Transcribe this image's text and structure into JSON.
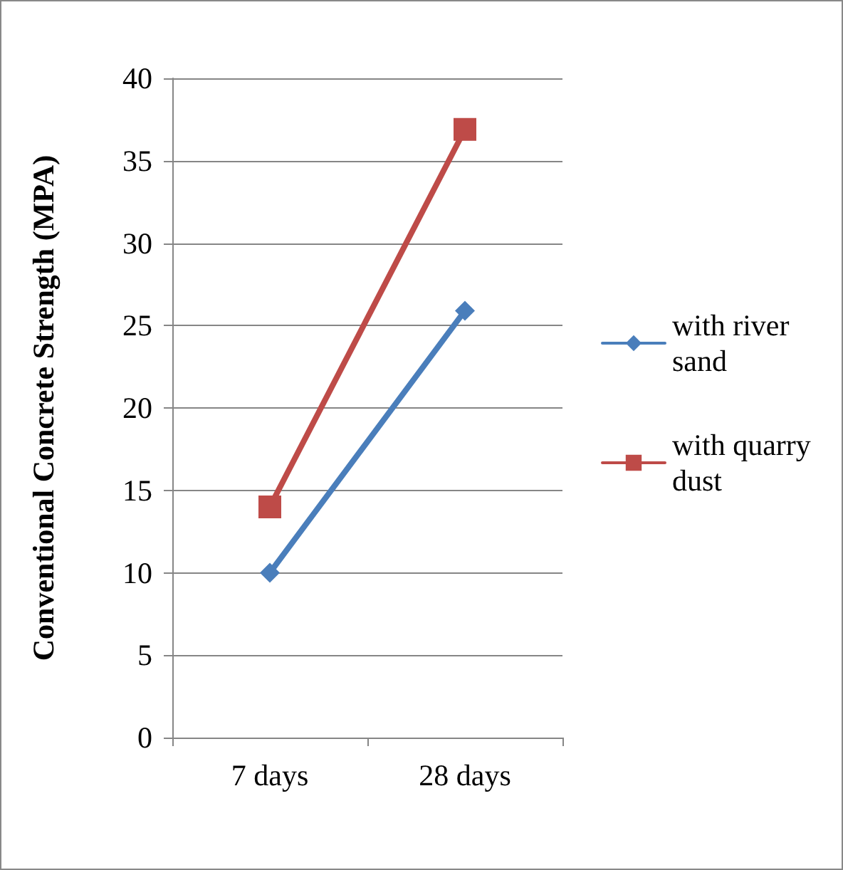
{
  "chart_data": {
    "type": "line",
    "ylabel": "Conventional Concrete Strength (MPA)",
    "categories": [
      "7 days",
      "28 days"
    ],
    "series": [
      {
        "name": "with river sand",
        "color": "#4a7ebb",
        "marker": "diamond",
        "values": [
          10,
          25.9
        ]
      },
      {
        "name": "with quarry dust",
        "color": "#be4b48",
        "marker": "square",
        "values": [
          14,
          36.9
        ]
      }
    ],
    "ylim": [
      0,
      40
    ],
    "yticks": [
      0,
      5,
      10,
      15,
      20,
      25,
      30,
      35,
      40
    ],
    "grid": "y",
    "legend": "right"
  }
}
